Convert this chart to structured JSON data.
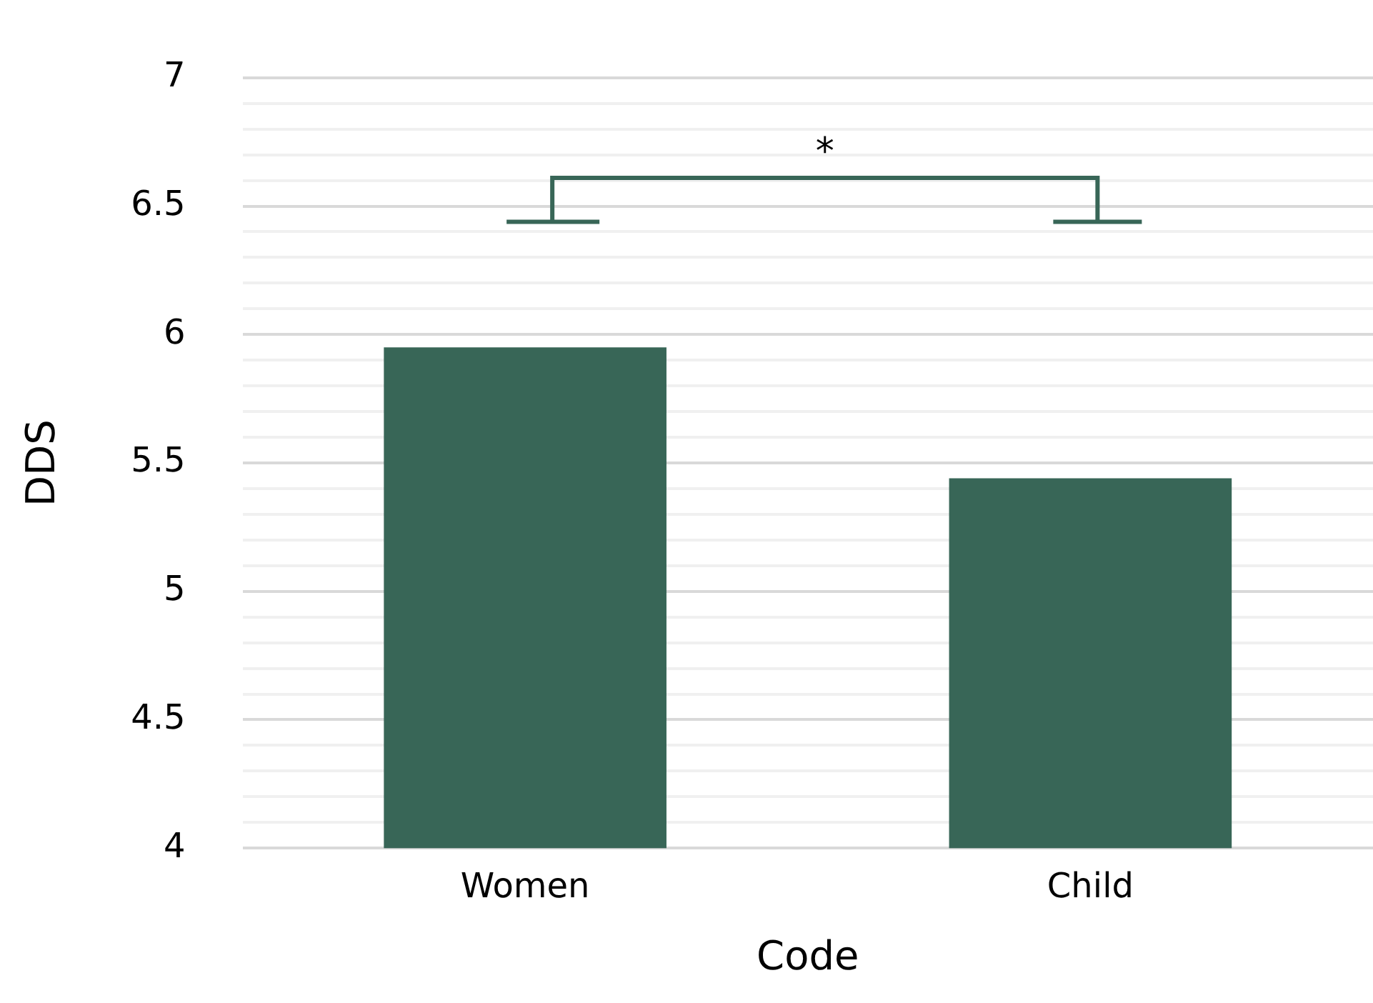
{
  "chart_data": {
    "type": "bar",
    "xlabel": "Code",
    "ylabel": "DDS",
    "categories": [
      "Women",
      "Child"
    ],
    "values": [
      5.95,
      5.44
    ],
    "color": "#386657",
    "ylim": [
      4,
      7
    ],
    "yticks": [
      4,
      {
        "value": 4.1,
        "label": null
      },
      {
        "value": 4.2,
        "label": null
      },
      {
        "value": 4.3,
        "label": null
      },
      {
        "value": 4.4,
        "label": null
      },
      4.5,
      {
        "value": 4.6,
        "label": null
      },
      {
        "value": 4.7,
        "label": null
      },
      {
        "value": 4.8,
        "label": null
      },
      {
        "value": 4.9,
        "label": null
      },
      5,
      {
        "value": 5.1,
        "label": null
      },
      {
        "value": 5.2,
        "label": null
      },
      {
        "value": 5.3,
        "label": null
      },
      {
        "value": 5.4,
        "label": null
      },
      5.5,
      {
        "value": 5.6,
        "label": null
      },
      {
        "value": 5.7,
        "label": null
      },
      {
        "value": 5.8,
        "label": null
      },
      {
        "value": 5.9,
        "label": null
      },
      6,
      {
        "value": 6.1,
        "label": null
      },
      {
        "value": 6.2,
        "label": null
      },
      {
        "value": 6.3,
        "label": null
      },
      {
        "value": 6.4,
        "label": null
      },
      6.5,
      {
        "value": 6.6,
        "label": null
      },
      {
        "value": 6.7,
        "label": null
      },
      {
        "value": 6.8,
        "label": null
      },
      {
        "value": 6.9,
        "label": null
      },
      7
    ],
    "grid": "y",
    "annotations": [
      "*"
    ]
  }
}
